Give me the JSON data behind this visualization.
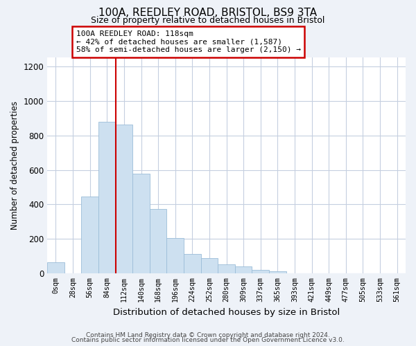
{
  "title": "100A, REEDLEY ROAD, BRISTOL, BS9 3TA",
  "subtitle": "Size of property relative to detached houses in Bristol",
  "xlabel": "Distribution of detached houses by size in Bristol",
  "ylabel": "Number of detached properties",
  "bar_labels": [
    "0sqm",
    "28sqm",
    "56sqm",
    "84sqm",
    "112sqm",
    "140sqm",
    "168sqm",
    "196sqm",
    "224sqm",
    "252sqm",
    "280sqm",
    "309sqm",
    "337sqm",
    "365sqm",
    "393sqm",
    "421sqm",
    "449sqm",
    "477sqm",
    "505sqm",
    "533sqm",
    "561sqm"
  ],
  "bar_heights": [
    65,
    0,
    445,
    880,
    862,
    580,
    375,
    205,
    115,
    90,
    55,
    42,
    20,
    15,
    0,
    0,
    0,
    0,
    0,
    0,
    0
  ],
  "bar_color": "#cde0f0",
  "bar_edge_color": "#9bbdd8",
  "vline_x_index": 4,
  "vline_color": "#cc0000",
  "annotation_line1": "100A REEDLEY ROAD: 118sqm",
  "annotation_line2": "← 42% of detached houses are smaller (1,587)",
  "annotation_line3": "58% of semi-detached houses are larger (2,150) →",
  "annotation_box_edgecolor": "#cc0000",
  "ylim": [
    0,
    1250
  ],
  "yticks": [
    0,
    200,
    400,
    600,
    800,
    1000,
    1200
  ],
  "footnote1": "Contains HM Land Registry data © Crown copyright and database right 2024.",
  "footnote2": "Contains public sector information licensed under the Open Government Licence v3.0.",
  "bg_color": "#eef2f8",
  "plot_bg_color": "#ffffff",
  "grid_color": "#c5cfe0"
}
